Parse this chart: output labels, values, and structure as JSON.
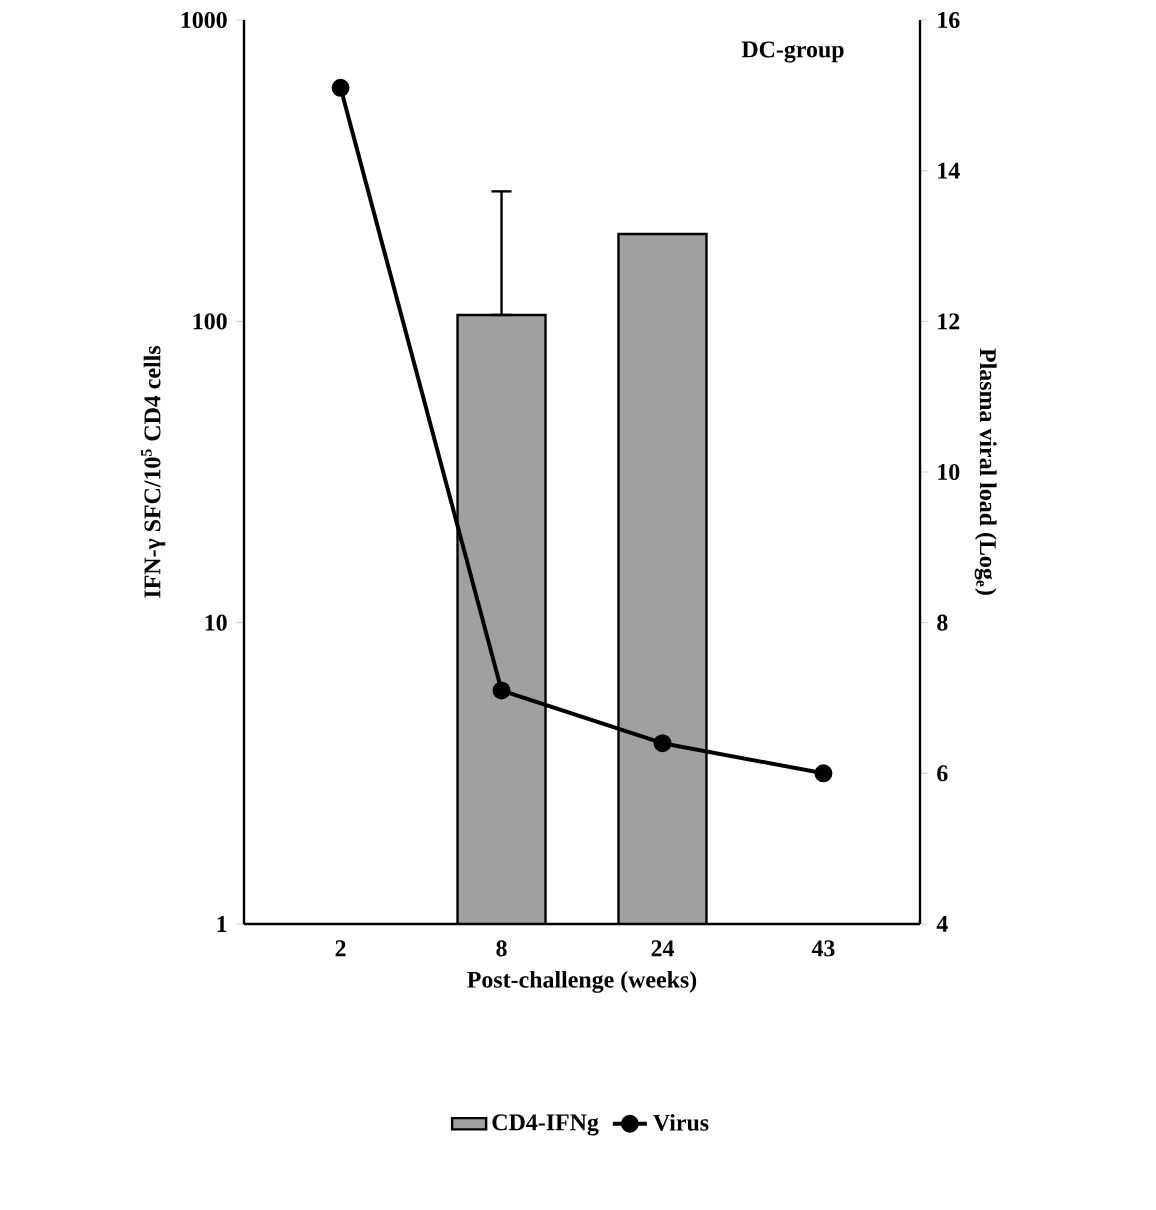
{
  "chart_data": {
    "type": "bar",
    "categories": [
      "2",
      "8",
      "24",
      "43"
    ],
    "series": [
      {
        "name": "CD4-IFNg",
        "color": "#a0a0a0",
        "values": [
          null,
          105,
          195,
          null
        ],
        "errors": [
          null,
          [
            105,
            270
          ],
          null,
          null
        ]
      },
      {
        "name": "Virus",
        "type": "line",
        "axis": "y2",
        "color": "#000000",
        "values": [
          15.1,
          7.1,
          6.4,
          6.0
        ],
        "marker": "circle"
      }
    ],
    "xlabel": "Post-challenge (weeks)",
    "ylabel": "IFN-γ SFC/10$^{5}$ CD4 cells",
    "y2label": "Plasma viral load (Log$_{e}$)",
    "log": "y",
    "ylim": [
      1,
      1000
    ],
    "yticks": [
      1,
      10,
      100,
      1000
    ],
    "y2lim": [
      4,
      16
    ],
    "y2ticks": [
      4,
      6,
      8,
      10,
      12,
      14,
      16
    ],
    "annotations": [
      "DC-group"
    ],
    "legend": "bottom",
    "grid": false
  }
}
